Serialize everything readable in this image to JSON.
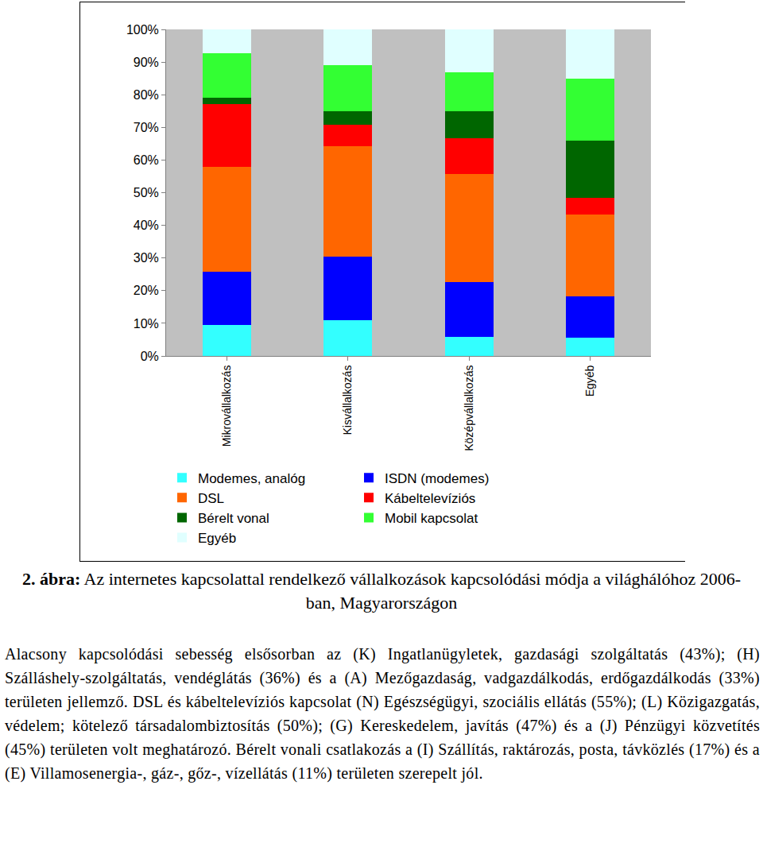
{
  "chart_data": {
    "type": "bar",
    "stacked": true,
    "title": "2. ábra: Az internetes kapcsolattal rendelkező vállalkozások kapcsolódási módja a világhálóhoz 2006-ban, Magyarországon",
    "categories": [
      "Mikrovállalkozás",
      "Kisvállalkozás",
      "Középvállalkozás",
      "Egyéb"
    ],
    "series": [
      {
        "name": "Modemes, analóg",
        "color": "#33FFFF",
        "values": [
          9.6,
          11.0,
          5.8,
          5.6
        ]
      },
      {
        "name": "ISDN (modemes)",
        "color": "#0000FF",
        "values": [
          16.1,
          19.4,
          16.8,
          12.7
        ]
      },
      {
        "name": "DSL",
        "color": "#FF6600",
        "values": [
          32.2,
          33.8,
          33.1,
          24.9
        ]
      },
      {
        "name": "Kábeltelevíziós",
        "color": "#FF0000",
        "values": [
          19.3,
          6.7,
          11.0,
          5.1
        ]
      },
      {
        "name": "Bérelt vonal",
        "color": "#006600",
        "values": [
          1.8,
          4.0,
          8.2,
          17.7
        ]
      },
      {
        "name": "Mobil kapcsolat",
        "color": "#33FF33",
        "values": [
          13.8,
          14.1,
          11.9,
          18.8
        ]
      },
      {
        "name": "Egyéb",
        "color": "#E0FFFF",
        "values": [
          7.2,
          11.0,
          13.2,
          15.2
        ]
      }
    ],
    "ylim": [
      0,
      100
    ],
    "yticks": [
      {
        "value": 0,
        "label": "0%"
      },
      {
        "value": 10,
        "label": "10%"
      },
      {
        "value": 20,
        "label": "20%"
      },
      {
        "value": 30,
        "label": "30%"
      },
      {
        "value": 40,
        "label": "40%"
      },
      {
        "value": 50,
        "label": "50%"
      },
      {
        "value": 60,
        "label": "60%"
      },
      {
        "value": 70,
        "label": "70%"
      },
      {
        "value": 80,
        "label": "80%"
      },
      {
        "value": 90,
        "label": "90%"
      },
      {
        "value": 100,
        "label": "100%"
      }
    ],
    "grid": false,
    "legend": "bottom"
  },
  "text": {
    "paragraph": "Alacsony kapcsolódási sebesség elsősorban az (K) Ingatlanügyletek, gazdasági szolgáltatás (43%); (H) Szálláshely-szolgáltatás, vendéglátás (36%) és a (A) Mezőgazdaság, vadgazdálkodás, erdőgazdálkodás (33%) területen jellemző. DSL és kábeltelevíziós kapcsolat (N) Egészségügyi, szociális ellátás (55%); (L) Közigazgatás, védelem; kötelező társadalombiztosítás (50%); (G) Kereskedelem, javítás (47%) és a (J) Pénzügyi közvetítés (45%) területen volt meghatározó. Bérelt vonali csatlakozás a (I) Szállítás, raktározás, posta, távközlés (17%) és a (E) Villamosenergia-, gáz-, gőz-, vízellátás (11%) területen szerepelt jól."
  }
}
